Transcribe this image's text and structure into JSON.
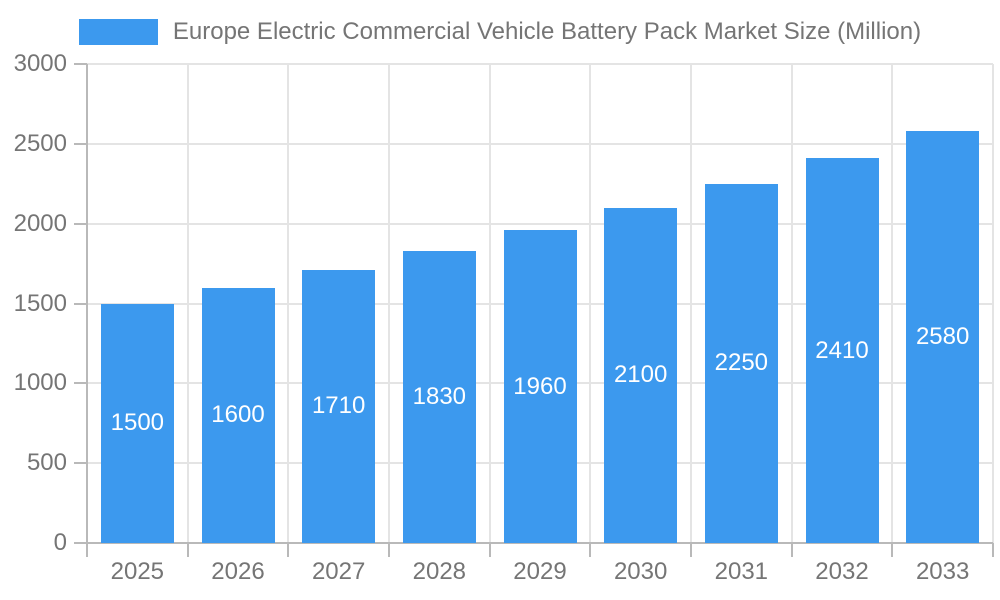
{
  "legend": {
    "label": "Europe Electric Commercial Vehicle Battery Pack Market Size (Million)"
  },
  "colors": {
    "bar": "#3C99EE",
    "grid": "#e4e4e4",
    "axis": "#b9b9b9",
    "axis_text": "#757575",
    "bar_label": "#ffffff",
    "background": "#ffffff"
  },
  "chart_data": {
    "type": "bar",
    "title": "Europe Electric Commercial Vehicle Battery Pack Market Size (Million)",
    "series": [
      {
        "name": "Europe Electric Commercial Vehicle Battery Pack Market Size (Million)",
        "values": [
          1500,
          1600,
          1710,
          1830,
          1960,
          2100,
          2250,
          2410,
          2580
        ],
        "color": "#3C99EE"
      }
    ],
    "categories": [
      "2025",
      "2026",
      "2027",
      "2028",
      "2029",
      "2030",
      "2031",
      "2032",
      "2033"
    ],
    "data_labels_visible": true,
    "xlabel": "",
    "ylabel": "",
    "ylim": [
      0,
      3000
    ],
    "yticks": [
      0,
      500,
      1000,
      1500,
      2000,
      2500,
      3000
    ],
    "grid": true,
    "legend_position": "top"
  }
}
